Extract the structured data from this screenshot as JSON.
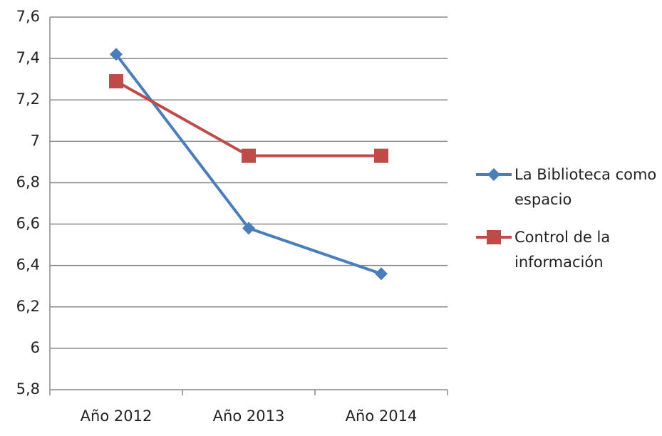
{
  "chart_data": {
    "type": "line",
    "categories": [
      "Año 2012",
      "Año 2013",
      "Año 2014"
    ],
    "series": [
      {
        "name": "La Biblioteca como espacio",
        "color": "#4a7ebb",
        "marker": "diamond",
        "values": [
          7.42,
          6.58,
          6.36
        ]
      },
      {
        "name": "Control de la información",
        "color": "#be4b48",
        "marker": "square",
        "values": [
          7.29,
          6.93,
          6.93
        ]
      }
    ],
    "ylim": [
      5.8,
      7.6
    ],
    "yticks": [
      {
        "value": 5.8,
        "label": "5,8"
      },
      6,
      {
        "value": 6.2,
        "label": "6,2"
      },
      {
        "value": 6.4,
        "label": "6,4"
      },
      {
        "value": 6.6,
        "label": "6,6"
      },
      {
        "value": 6.8,
        "label": "6,8"
      },
      7,
      {
        "value": 7.2,
        "label": "7,2"
      },
      {
        "value": 7.4,
        "label": "7,4"
      },
      {
        "value": 7.6,
        "label": "7,6"
      }
    ],
    "grid": true,
    "legend": "right"
  }
}
